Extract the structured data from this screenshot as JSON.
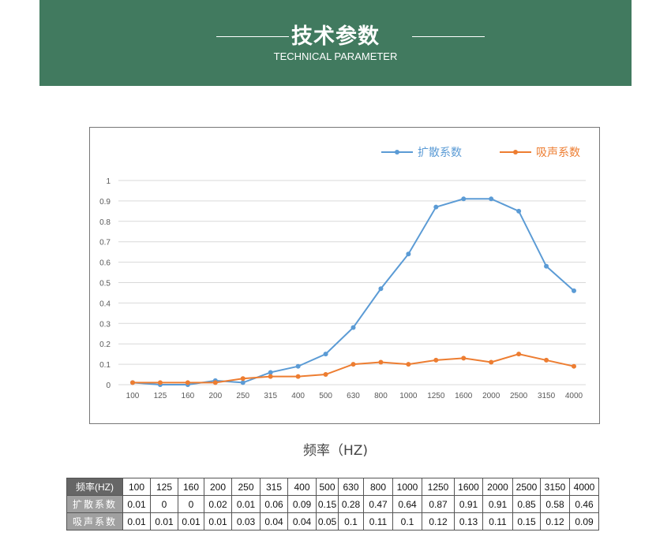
{
  "header": {
    "title": "技术参数",
    "subtitle": "TECHNICAL PARAMETER"
  },
  "chart_data": {
    "type": "line",
    "categories": [
      "100",
      "125",
      "160",
      "200",
      "250",
      "315",
      "400",
      "500",
      "630",
      "800",
      "1000",
      "1250",
      "1600",
      "2000",
      "2500",
      "3150",
      "4000"
    ],
    "series": [
      {
        "name": "扩散系数",
        "color": "#5b9bd5",
        "values": [
          0.01,
          0,
          0,
          0.02,
          0.01,
          0.06,
          0.09,
          0.15,
          0.28,
          0.47,
          0.64,
          0.87,
          0.91,
          0.91,
          0.85,
          0.58,
          0.46
        ]
      },
      {
        "name": "吸声系数",
        "color": "#ed7d31",
        "values": [
          0.01,
          0.01,
          0.01,
          0.01,
          0.03,
          0.04,
          0.04,
          0.05,
          0.1,
          0.11,
          0.1,
          0.12,
          0.13,
          0.11,
          0.15,
          0.12,
          0.09
        ]
      }
    ],
    "yticks": [
      "0",
      "0.1",
      "0.2",
      "0.3",
      "0.4",
      "0.5",
      "0.6",
      "0.7",
      "0.8",
      "0.9",
      "1"
    ],
    "ylim": [
      0,
      1
    ],
    "xlabel": "频率（HZ)",
    "ylabel": "",
    "grid": true,
    "legend_position": "top-right"
  },
  "table": {
    "rows": [
      {
        "header": "频率(HZ)",
        "cells": [
          "100",
          "125",
          "160",
          "200",
          "250",
          "315",
          "400",
          "500",
          "630",
          "800",
          "1000",
          "1250",
          "1600",
          "2000",
          "2500",
          "3150",
          "4000"
        ]
      },
      {
        "header": "扩散系数",
        "cells": [
          "0.01",
          "0",
          "0",
          "0.02",
          "0.01",
          "0.06",
          "0.09",
          "0.15",
          "0.28",
          "0.47",
          "0.64",
          "0.87",
          "0.91",
          "0.91",
          "0.85",
          "0.58",
          "0.46"
        ]
      },
      {
        "header": "吸声系数",
        "cells": [
          "0.01",
          "0.01",
          "0.01",
          "0.01",
          "0.03",
          "0.04",
          "0.04",
          "0.05",
          "0.1",
          "0.11",
          "0.1",
          "0.12",
          "0.13",
          "0.11",
          "0.15",
          "0.12",
          "0.09"
        ]
      }
    ],
    "widths": [
      34,
      34,
      32,
      34,
      35,
      34,
      35,
      27,
      31,
      36,
      36,
      40,
      35,
      37,
      34,
      36,
      36
    ]
  }
}
